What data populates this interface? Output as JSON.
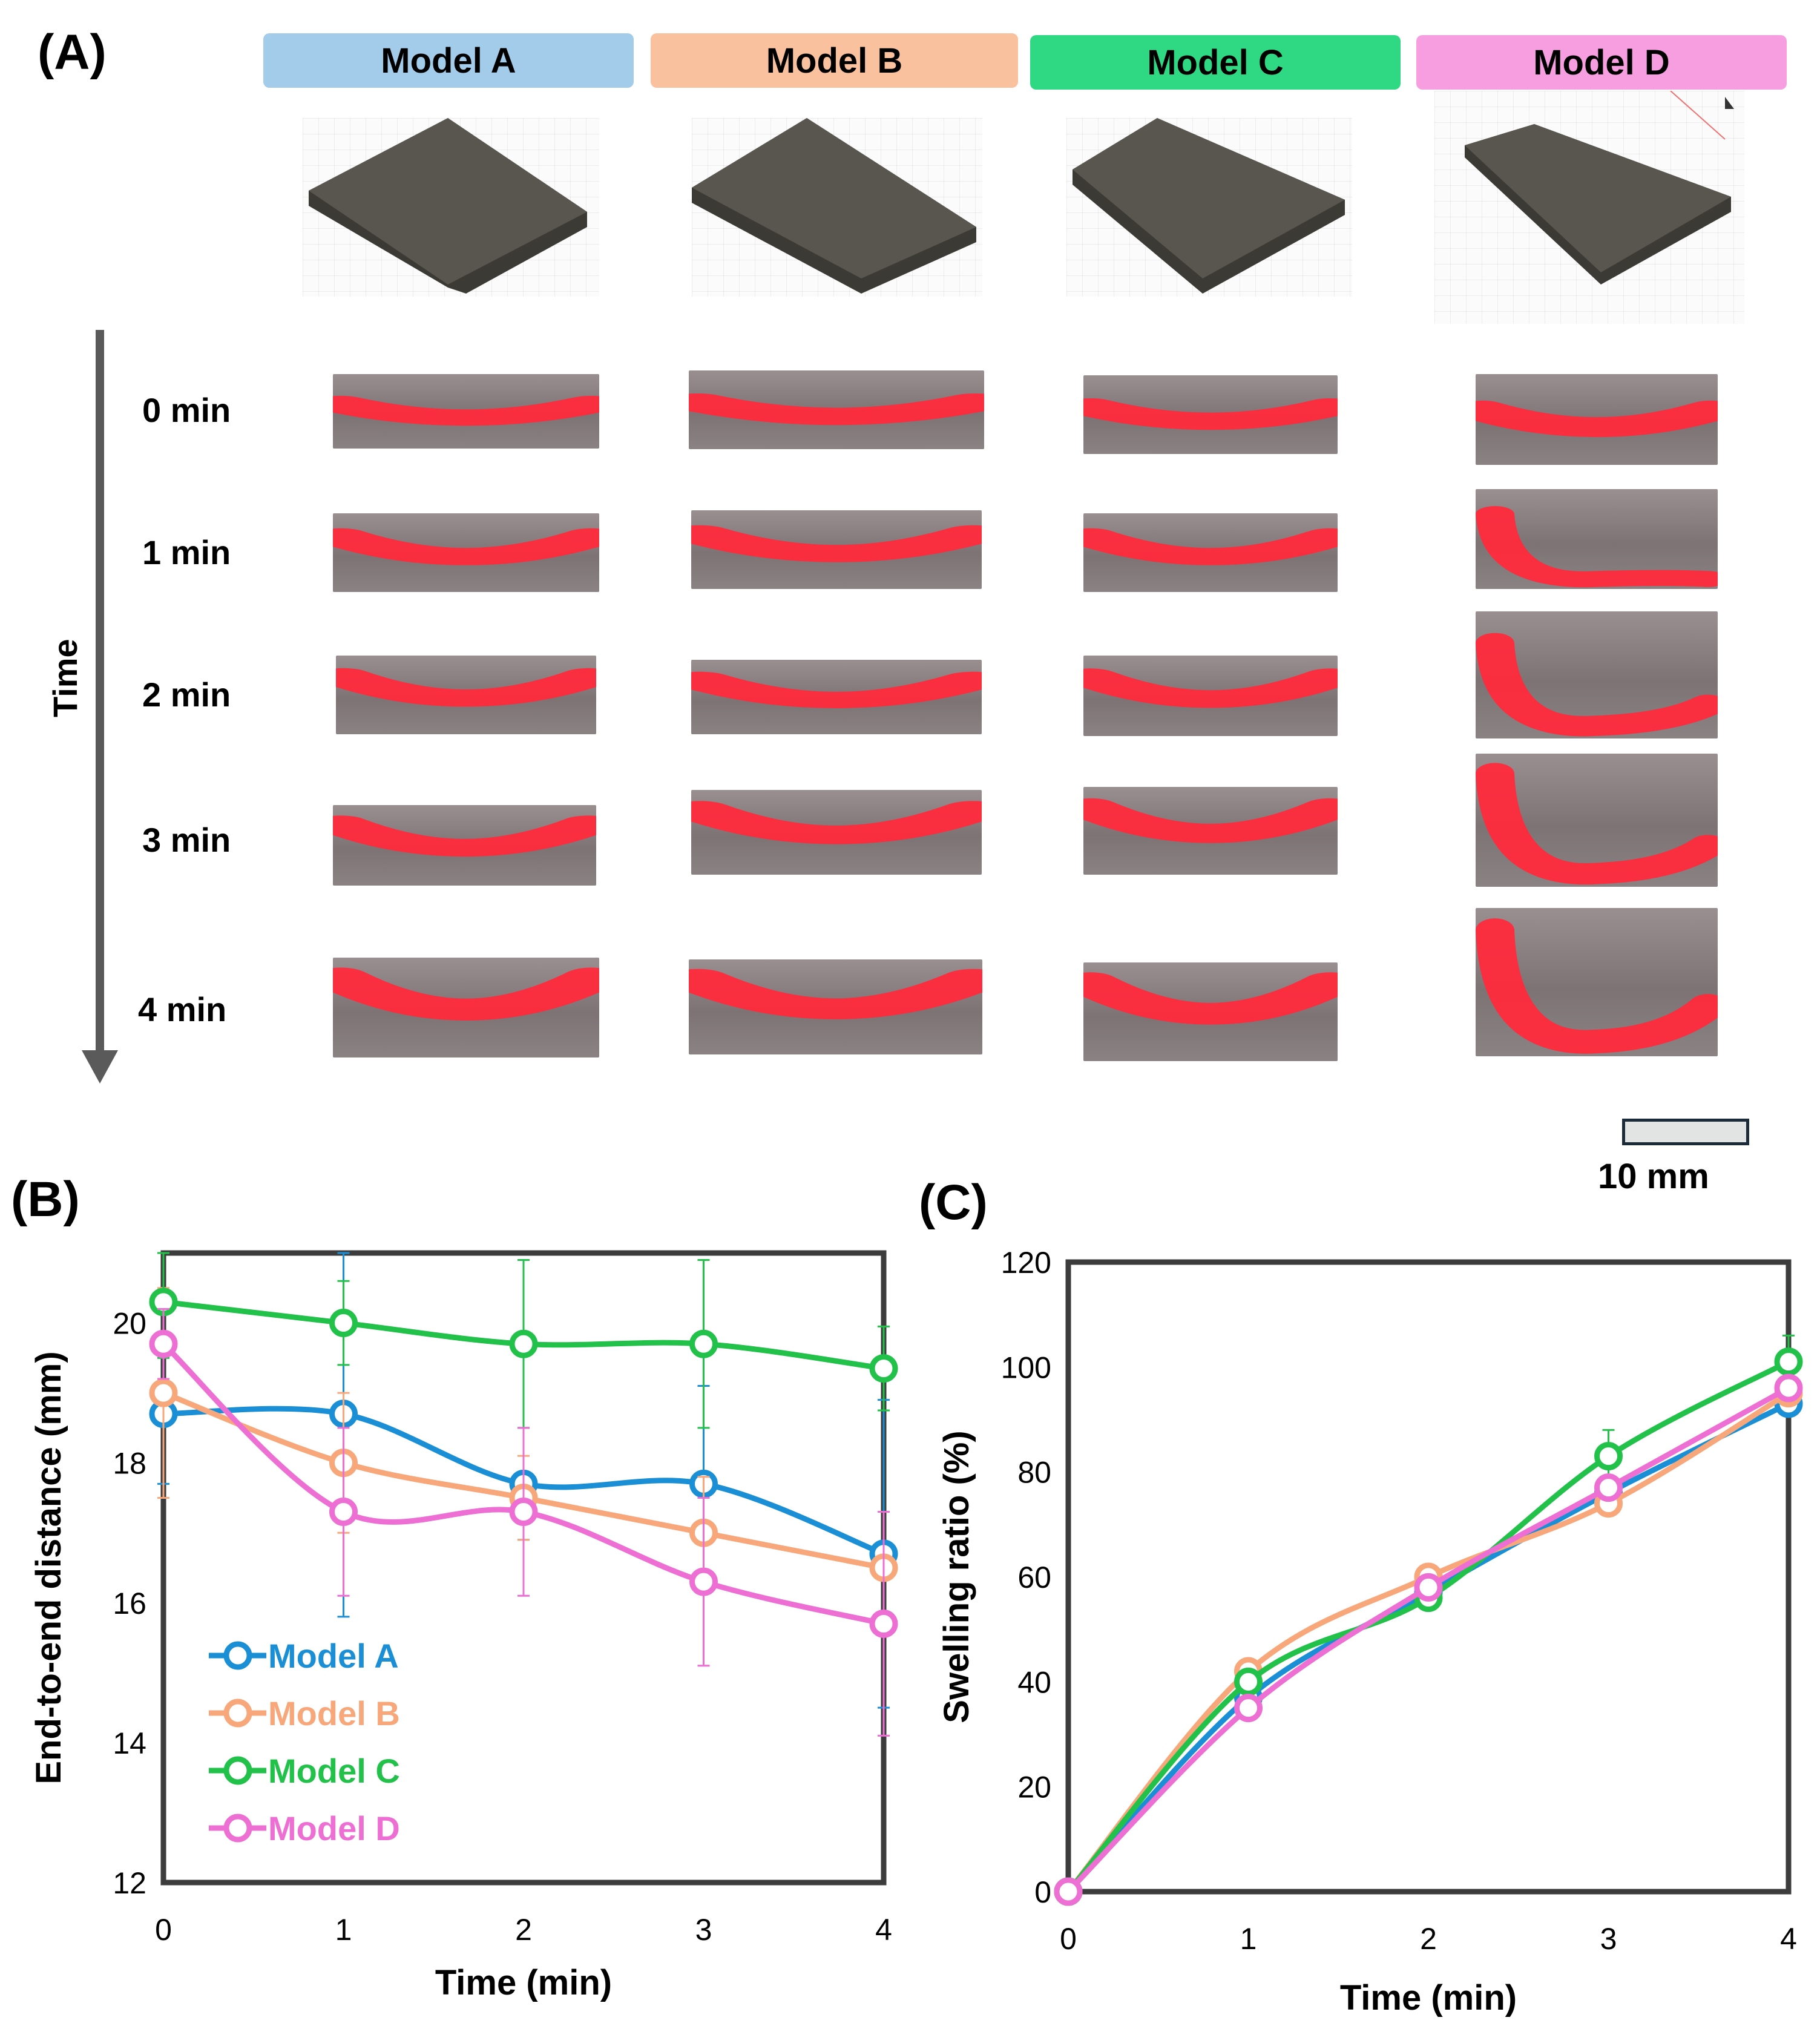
{
  "panel_a": {
    "label": "(A)",
    "models": [
      {
        "name": "Model A",
        "color": "#a3cbea"
      },
      {
        "name": "Model B",
        "color": "#f9c19e"
      },
      {
        "name": "Model C",
        "color": "#2fd882"
      },
      {
        "name": "Model D",
        "color": "#f79ee0"
      }
    ],
    "time_axis_label": "Time",
    "time_labels": [
      "0 min",
      "1 min",
      "2 min",
      "3 min",
      "4 min"
    ],
    "scale_bar_label": "10 mm"
  },
  "panel_b": {
    "label": "(B)"
  },
  "panel_c": {
    "label": "(C)"
  },
  "chart_data": [
    {
      "type": "line",
      "title": "",
      "xlabel": "Time (min)",
      "ylabel": "End-to-end distance (mm)",
      "x": [
        0,
        1,
        2,
        3,
        4
      ],
      "xticks": [
        "0",
        "1",
        "2",
        "3",
        "4"
      ],
      "ylim": [
        12,
        21
      ],
      "yticks": [
        "12",
        "14",
        "16",
        "18",
        "20"
      ],
      "legend": "bottom-left",
      "series": [
        {
          "name": "Model A",
          "color": "#1a8fd6",
          "values": [
            18.7,
            18.7,
            17.7,
            17.7,
            16.7
          ],
          "errors": [
            1.0,
            2.9,
            0.8,
            1.4,
            2.2
          ]
        },
        {
          "name": "Model B",
          "color": "#f7a77a",
          "values": [
            19.0,
            18.0,
            17.5,
            17.0,
            16.5
          ],
          "errors": [
            1.5,
            1.0,
            0.6,
            0.8,
            0.8
          ]
        },
        {
          "name": "Model C",
          "color": "#22c24a",
          "values": [
            20.3,
            20.0,
            19.7,
            19.7,
            19.35
          ],
          "errors": [
            0.8,
            0.6,
            1.2,
            1.2,
            0.6
          ]
        },
        {
          "name": "Model D",
          "color": "#ee6fd3",
          "values": [
            19.7,
            17.3,
            17.3,
            16.3,
            15.7
          ],
          "errors": [
            0.5,
            1.2,
            1.2,
            1.2,
            1.6
          ]
        }
      ]
    },
    {
      "type": "line",
      "title": "",
      "xlabel": "Time (min)",
      "ylabel": "Swelling ratio (%)",
      "x": [
        0,
        1,
        2,
        3,
        4
      ],
      "xticks": [
        "0",
        "1",
        "2",
        "3",
        "4"
      ],
      "ylim": [
        0,
        120
      ],
      "yticks": [
        "0",
        "20",
        "40",
        "60",
        "80",
        "100",
        "120"
      ],
      "series": [
        {
          "name": "Model A",
          "color": "#1a8fd6",
          "values": [
            0,
            37,
            57,
            76,
            93
          ]
        },
        {
          "name": "Model B",
          "color": "#f7a77a",
          "values": [
            0,
            42,
            60,
            74,
            95
          ]
        },
        {
          "name": "Model C",
          "color": "#22c24a",
          "values": [
            0,
            40,
            56,
            83,
            101
          ],
          "errors": [
            0,
            0,
            0,
            5,
            5
          ]
        },
        {
          "name": "Model D",
          "color": "#ee6fd3",
          "values": [
            0,
            35,
            58,
            77,
            96
          ]
        }
      ]
    }
  ]
}
